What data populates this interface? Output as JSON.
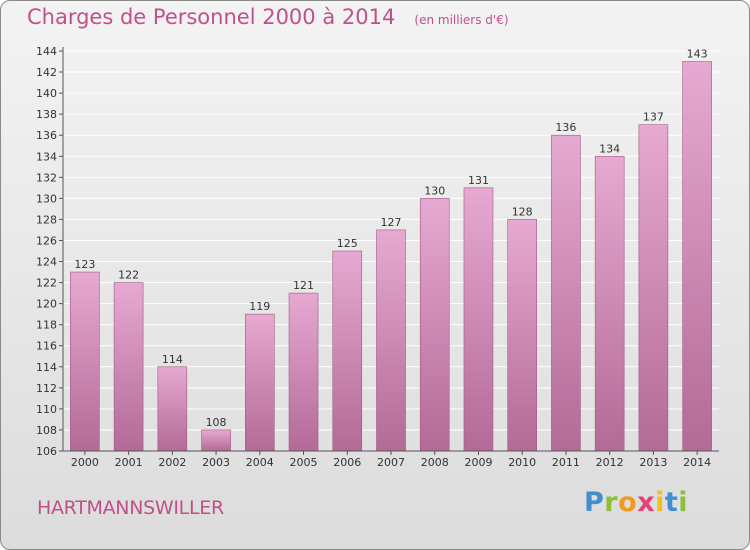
{
  "header": {
    "title": "Charges de Personnel 2000 à 2014",
    "subtitle": "(en milliers d'€)"
  },
  "footer": {
    "commune": "HARTMANNSWILLER",
    "logo_text": "Proxiti",
    "logo_letters": [
      "P",
      "r",
      "o",
      "x",
      "i",
      "t",
      "i"
    ],
    "logo_colors": [
      "#3f8fd0",
      "#8bbf3c",
      "#f29a1f",
      "#e6407a",
      "#f0c020",
      "#3f8fd0",
      "#8bbf3c"
    ]
  },
  "colors": {
    "accent": "#c0508a",
    "bar_top": "#e6a9d2",
    "bar_bottom": "#b36a97",
    "bar_border": "#9f5a86"
  },
  "chart_data": {
    "type": "bar",
    "title": "Charges de Personnel 2000 à 2014",
    "subtitle": "(en milliers d'€)",
    "categories": [
      "2000",
      "2001",
      "2002",
      "2003",
      "2004",
      "2005",
      "2006",
      "2007",
      "2008",
      "2009",
      "2010",
      "2011",
      "2012",
      "2013",
      "2014"
    ],
    "values": [
      123,
      122,
      114,
      108,
      119,
      121,
      125,
      127,
      130,
      131,
      128,
      136,
      134,
      137,
      143
    ],
    "data_labels": [
      "123",
      "122",
      "114",
      "108",
      "119",
      "121",
      "125",
      "127",
      "130",
      "131",
      "128",
      "136",
      "134",
      "137",
      "143"
    ],
    "ylim": [
      106,
      144
    ],
    "yticks": [
      "106",
      "108",
      "110",
      "112",
      "114",
      "116",
      "118",
      "120",
      "122",
      "124",
      "126",
      "128",
      "130",
      "132",
      "134",
      "136",
      "138",
      "140",
      "142",
      "144"
    ],
    "grid": true
  }
}
